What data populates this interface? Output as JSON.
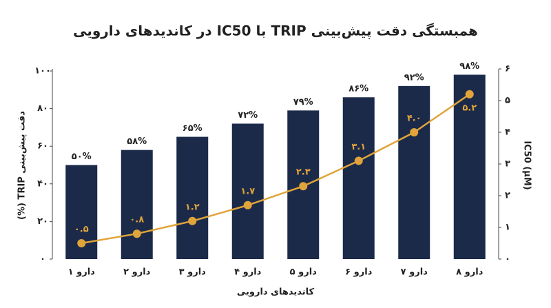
{
  "chart_data": {
    "type": "bar",
    "title": "همبستگی دقت پیش‌بینی TRIP با IC50 در کاندیدهای دارویی",
    "x_label": "کاندیدهای دارویی",
    "y_label": "دقت پیش‌بینی TRIP (%)",
    "y2_label": "IC50 (μM)",
    "categories": [
      "دارو ۱",
      "دارو ۲",
      "دارو ۳",
      "دارو ۴",
      "دارو ۵",
      "دارو ۶",
      "دارو ۷",
      "دارو ۸"
    ],
    "series": [
      {
        "type": "bar",
        "color": "#1c2a4a",
        "values": [
          50,
          58,
          65,
          72,
          79,
          86,
          92,
          98
        ],
        "value_labels": [
          "۵۰%",
          "۵۸%",
          "۶۵%",
          "۷۲%",
          "۷۹%",
          "۸۶%",
          "۹۲%",
          "۹۸%"
        ]
      },
      {
        "type": "line",
        "axis": "y2",
        "color": "#e0a43a",
        "values": [
          0.5,
          0.8,
          1.2,
          1.7,
          2.3,
          3.1,
          4.0,
          5.2
        ],
        "value_labels": [
          "۰.۵",
          "۰.۸",
          "۱.۲",
          "۱.۷",
          "۲.۳",
          "۳.۱",
          "۴.۰",
          "۵.۲"
        ]
      }
    ],
    "ylim": [
      0,
      100
    ],
    "yticks": [
      {
        "value": 0,
        "label": "۰"
      },
      {
        "value": 20,
        "label": "۲۰"
      },
      {
        "value": 40,
        "label": "۴۰"
      },
      {
        "value": 60,
        "label": "۶۰"
      },
      {
        "value": 80,
        "label": "۸۰"
      },
      {
        "value": 100,
        "label": "۱۰۰"
      }
    ],
    "y2lim": [
      0,
      6
    ],
    "y2ticks": [
      {
        "value": 0,
        "label": "۰"
      },
      {
        "value": 1,
        "label": "۱"
      },
      {
        "value": 2,
        "label": "۲"
      },
      {
        "value": 3,
        "label": "۳"
      },
      {
        "value": 4,
        "label": "۴"
      },
      {
        "value": 5,
        "label": "۵"
      },
      {
        "value": 6,
        "label": "۶"
      }
    ],
    "grid": false
  }
}
